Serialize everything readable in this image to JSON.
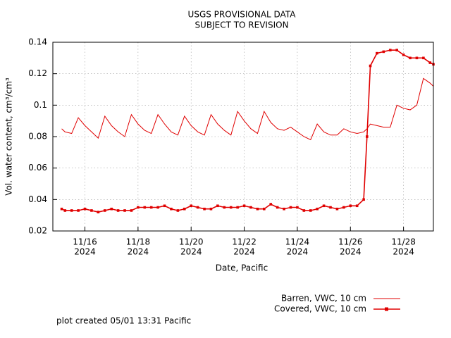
{
  "chart_data": {
    "type": "line",
    "title": "USGS PROVISIONAL DATA",
    "subtitle": "SUBJECT TO REVISION",
    "x_label": "Date, Pacific",
    "y_label": "Vol. water content, cm³/cm³",
    "footer": "plot created 05/01 13:31 Pacific",
    "legend": "below",
    "grid": true,
    "xlim": [
      "2024-11-14T19:00",
      "2024-11-29T03:00"
    ],
    "xticks": [
      {
        "value": "2024-11-16T00:00",
        "label": [
          "11/16",
          "2024"
        ]
      },
      {
        "value": "2024-11-18T00:00",
        "label": [
          "11/18",
          "2024"
        ]
      },
      {
        "value": "2024-11-20T00:00",
        "label": [
          "11/20",
          "2024"
        ]
      },
      {
        "value": "2024-11-22T00:00",
        "label": [
          "11/22",
          "2024"
        ]
      },
      {
        "value": "2024-11-24T00:00",
        "label": [
          "11/24",
          "2024"
        ]
      },
      {
        "value": "2024-11-26T00:00",
        "label": [
          "11/26",
          "2024"
        ]
      },
      {
        "value": "2024-11-28T00:00",
        "label": [
          "11/28",
          "2024"
        ]
      }
    ],
    "ylim": [
      0.02,
      0.14
    ],
    "yticks": [
      0.02,
      0.04,
      0.06,
      0.08,
      0.1,
      0.12,
      0.14
    ],
    "x": [
      "2024-11-15T03:00",
      "2024-11-15T06:00",
      "2024-11-15T12:00",
      "2024-11-15T18:00",
      "2024-11-16T00:00",
      "2024-11-16T06:00",
      "2024-11-16T12:00",
      "2024-11-16T18:00",
      "2024-11-17T00:00",
      "2024-11-17T06:00",
      "2024-11-17T12:00",
      "2024-11-17T18:00",
      "2024-11-18T00:00",
      "2024-11-18T06:00",
      "2024-11-18T12:00",
      "2024-11-18T18:00",
      "2024-11-19T00:00",
      "2024-11-19T06:00",
      "2024-11-19T12:00",
      "2024-11-19T18:00",
      "2024-11-20T00:00",
      "2024-11-20T06:00",
      "2024-11-20T12:00",
      "2024-11-20T18:00",
      "2024-11-21T00:00",
      "2024-11-21T06:00",
      "2024-11-21T12:00",
      "2024-11-21T18:00",
      "2024-11-22T00:00",
      "2024-11-22T06:00",
      "2024-11-22T12:00",
      "2024-11-22T18:00",
      "2024-11-23T00:00",
      "2024-11-23T06:00",
      "2024-11-23T12:00",
      "2024-11-23T18:00",
      "2024-11-24T00:00",
      "2024-11-24T06:00",
      "2024-11-24T12:00",
      "2024-11-24T18:00",
      "2024-11-25T00:00",
      "2024-11-25T06:00",
      "2024-11-25T12:00",
      "2024-11-25T18:00",
      "2024-11-26T00:00",
      "2024-11-26T06:00",
      "2024-11-26T12:00",
      "2024-11-26T15:00",
      "2024-11-26T18:00",
      "2024-11-27T00:00",
      "2024-11-27T06:00",
      "2024-11-27T12:00",
      "2024-11-27T18:00",
      "2024-11-28T00:00",
      "2024-11-28T06:00",
      "2024-11-28T12:00",
      "2024-11-28T18:00",
      "2024-11-29T00:00",
      "2024-11-29T03:00"
    ],
    "series": [
      {
        "name": "Barren, VWC, 10 cm",
        "color": "#e00000",
        "marker": false,
        "values": [
          0.085,
          0.083,
          0.082,
          0.092,
          0.087,
          0.083,
          0.079,
          0.093,
          0.087,
          0.083,
          0.08,
          0.094,
          0.088,
          0.084,
          0.082,
          0.094,
          0.088,
          0.083,
          0.081,
          0.093,
          0.087,
          0.083,
          0.081,
          0.094,
          0.088,
          0.084,
          0.081,
          0.096,
          0.09,
          0.085,
          0.082,
          0.096,
          0.089,
          0.085,
          0.084,
          0.086,
          0.083,
          0.08,
          0.078,
          0.088,
          0.083,
          0.081,
          0.081,
          0.085,
          0.083,
          0.082,
          0.083,
          0.085,
          0.088,
          0.087,
          0.086,
          0.086,
          0.1,
          0.098,
          0.097,
          0.1,
          0.117,
          0.114,
          0.112
        ]
      },
      {
        "name": "Covered, VWC, 10 cm",
        "color": "#e00000",
        "marker": true,
        "values": [
          0.034,
          0.033,
          0.033,
          0.033,
          0.034,
          0.033,
          0.032,
          0.033,
          0.034,
          0.033,
          0.033,
          0.033,
          0.035,
          0.035,
          0.035,
          0.035,
          0.036,
          0.034,
          0.033,
          0.034,
          0.036,
          0.035,
          0.034,
          0.034,
          0.036,
          0.035,
          0.035,
          0.035,
          0.036,
          0.035,
          0.034,
          0.034,
          0.037,
          0.035,
          0.034,
          0.035,
          0.035,
          0.033,
          0.033,
          0.034,
          0.036,
          0.035,
          0.034,
          0.035,
          0.036,
          0.036,
          0.04,
          0.08,
          0.125,
          0.133,
          0.134,
          0.135,
          0.135,
          0.132,
          0.13,
          0.13,
          0.13,
          0.127,
          0.126
        ]
      }
    ]
  }
}
